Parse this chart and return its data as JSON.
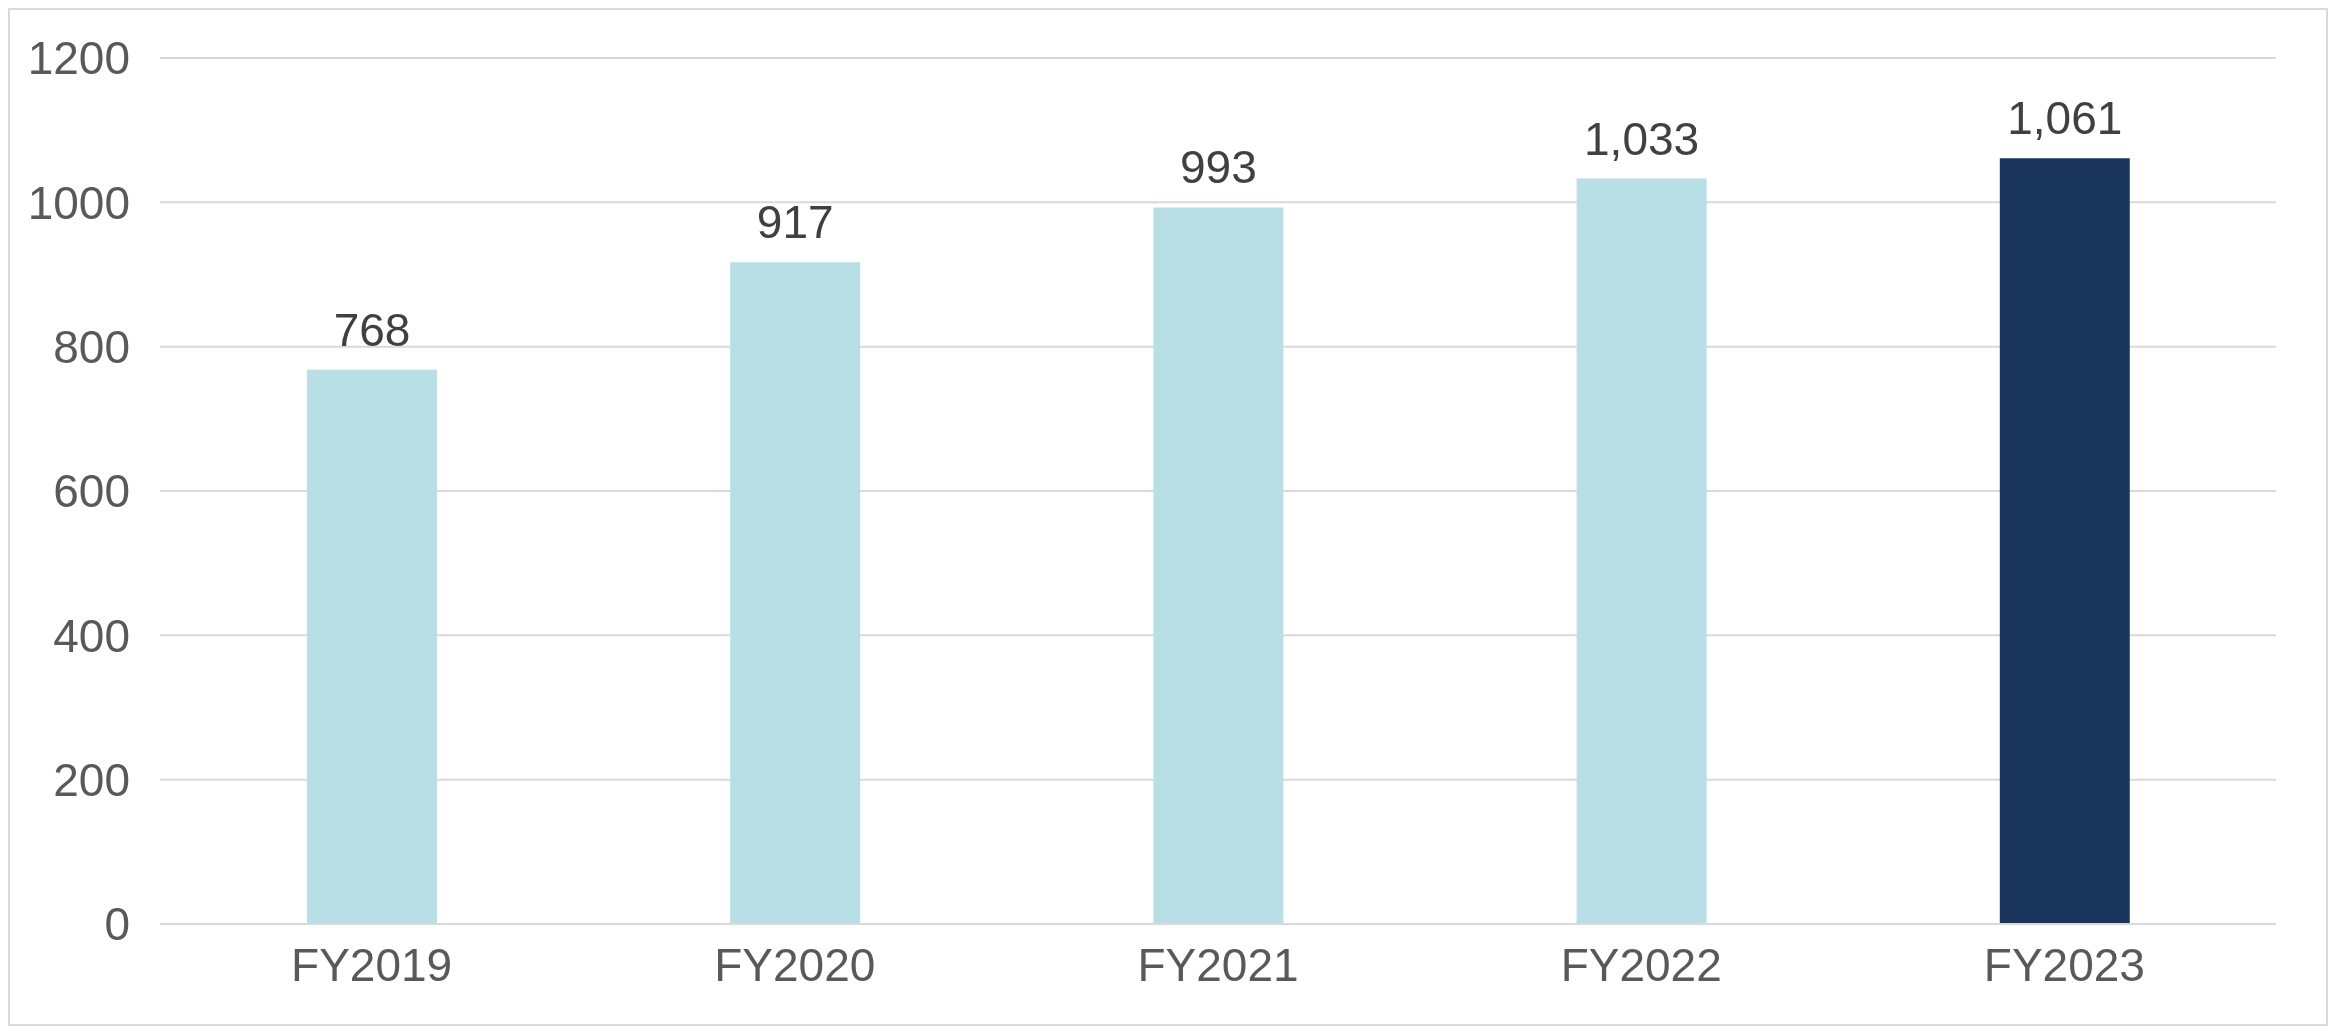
{
  "chart_data": {
    "type": "bar",
    "categories": [
      "FY2019",
      "FY2020",
      "FY2021",
      "FY2022",
      "FY2023"
    ],
    "values": [
      768,
      917,
      993,
      1033,
      1061
    ],
    "colors": [
      "#b8dfe6",
      "#b8dfe6",
      "#b8dfe6",
      "#b8dfe6",
      "#1a365d"
    ],
    "value_labels": [
      "768",
      "917",
      "993",
      "1,033",
      "1,061"
    ],
    "ylim": [
      0,
      1200
    ],
    "yticks": [
      0,
      200,
      400,
      600,
      800,
      1000,
      1200
    ],
    "grid": "y"
  }
}
